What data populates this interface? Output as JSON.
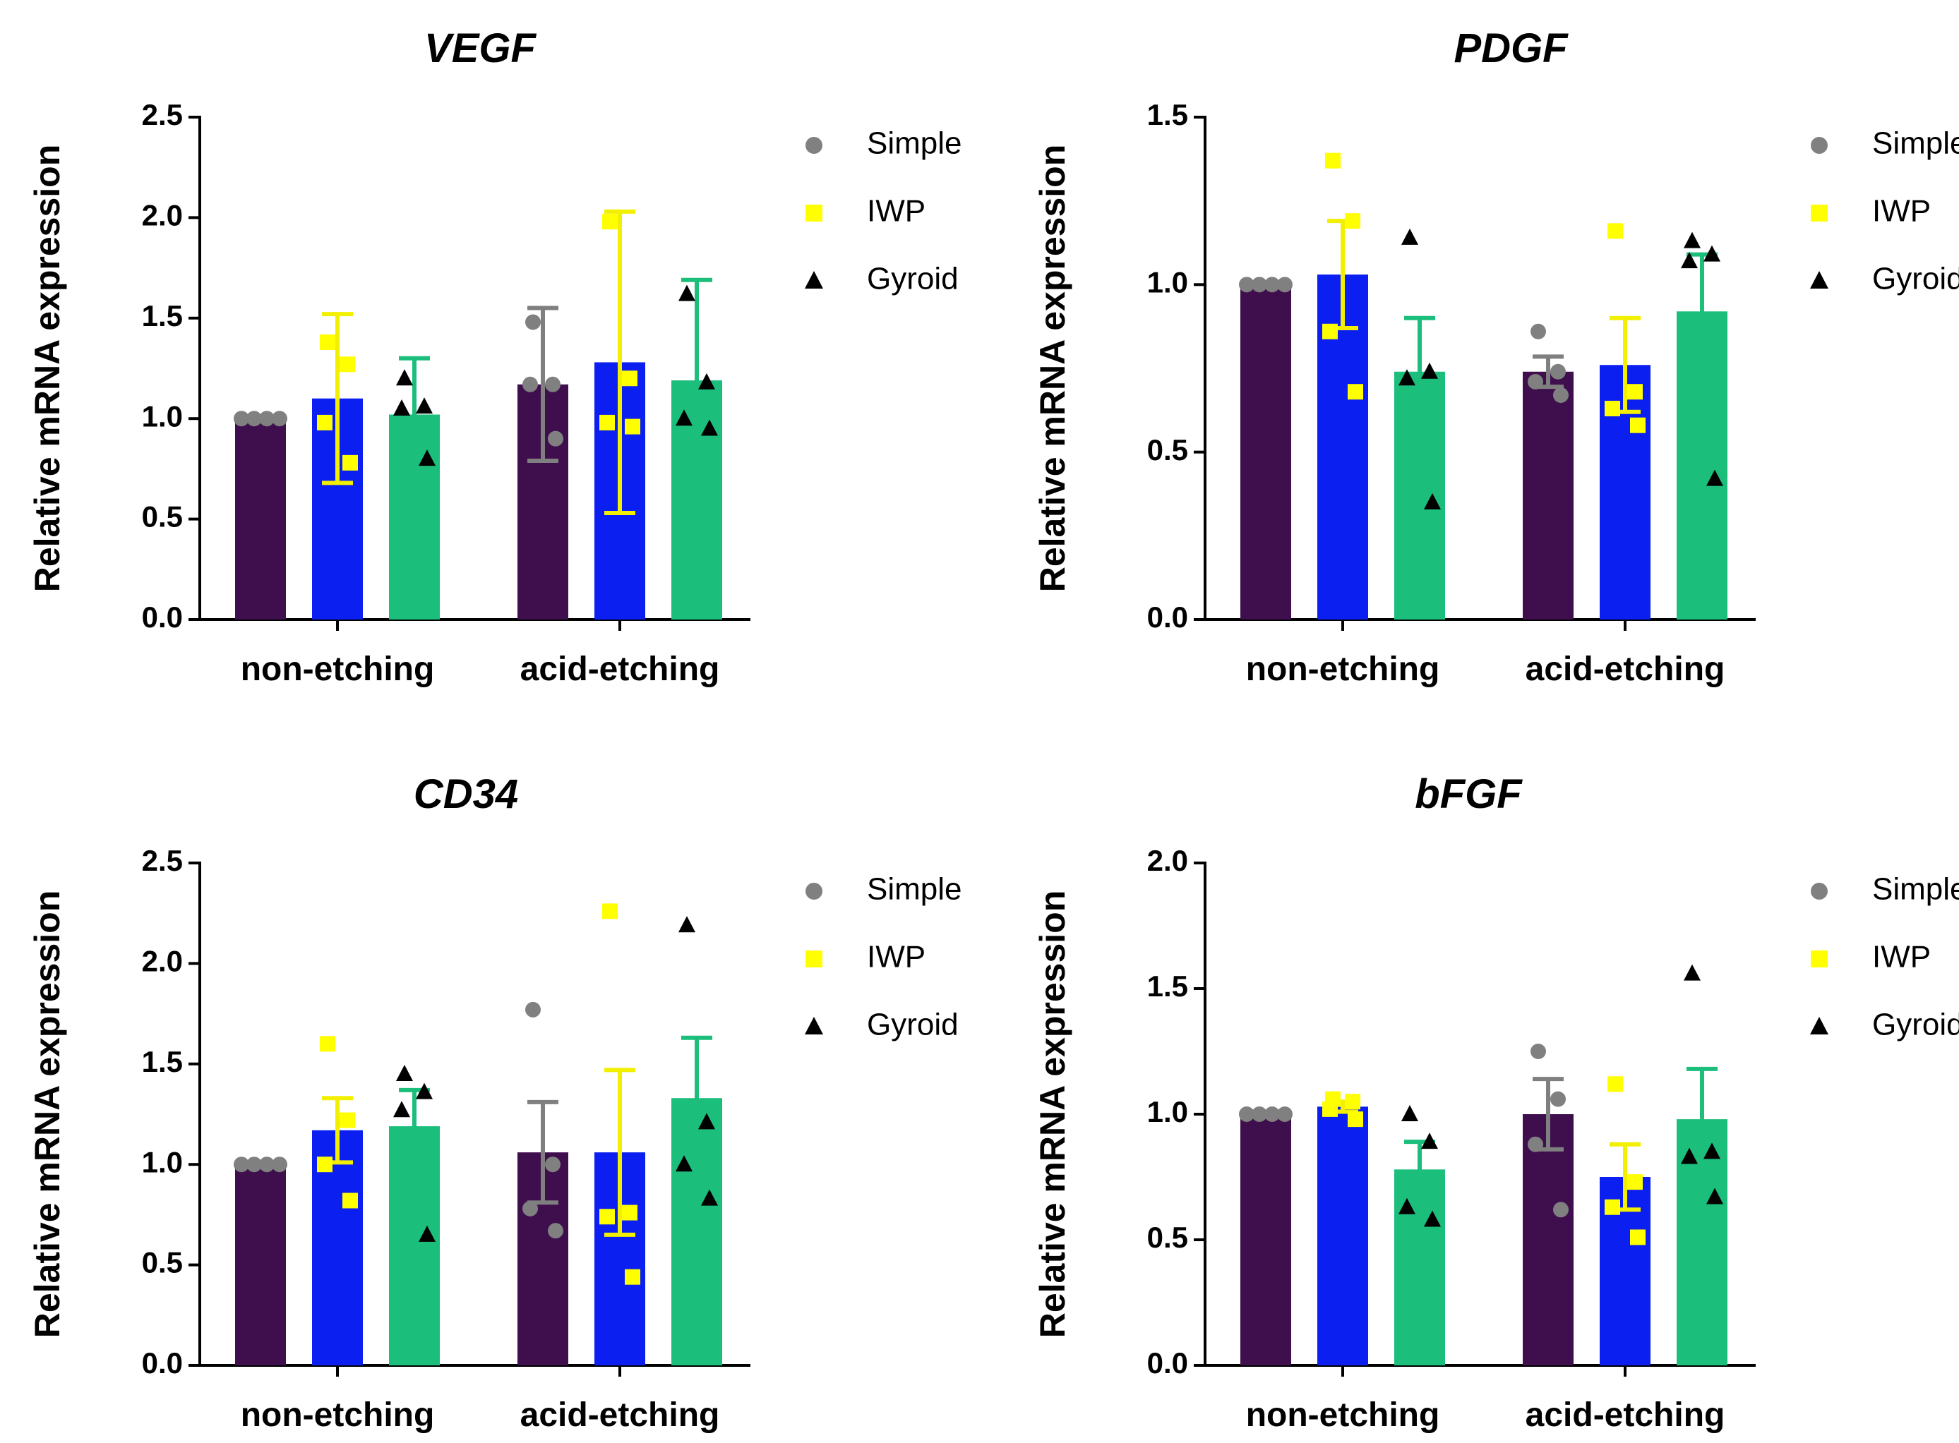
{
  "chart_data": [
    {
      "type": "bar",
      "title": "VEGF",
      "ylabel": "Relative mRNA expression",
      "xlabel": "",
      "categories": [
        "non-etching",
        "acid-etching"
      ],
      "ylim": [
        0,
        2.5
      ],
      "yticks": [
        "0.0",
        "0.5",
        "1.0",
        "1.5",
        "2.0",
        "2.5"
      ],
      "legend_position": "top-right",
      "series": [
        {
          "name": "Simple",
          "values": [
            1.0,
            1.17
          ],
          "error": [
            0.0,
            0.38
          ],
          "points": [
            [
              1.0,
              1.0,
              1.0,
              1.0
            ],
            [
              1.48,
              1.17,
              1.17,
              0.9
            ]
          ]
        },
        {
          "name": "IWP",
          "values": [
            1.1,
            1.28
          ],
          "error": [
            0.42,
            0.75
          ],
          "points": [
            [
              1.38,
              1.27,
              0.98,
              0.78
            ],
            [
              1.98,
              1.2,
              0.98,
              0.96
            ]
          ]
        },
        {
          "name": "Gyroid",
          "values": [
            1.02,
            1.19
          ],
          "error": [
            0.28,
            0.5
          ],
          "points": [
            [
              1.2,
              1.06,
              1.05,
              0.8
            ],
            [
              1.62,
              1.18,
              1.0,
              0.95
            ]
          ]
        }
      ]
    },
    {
      "type": "bar",
      "title": "PDGF",
      "ylabel": "Relative mRNA expression",
      "xlabel": "",
      "categories": [
        "non-etching",
        "acid-etching"
      ],
      "ylim": [
        0,
        1.5
      ],
      "yticks": [
        "0.0",
        "0.5",
        "1.0",
        "1.5"
      ],
      "legend_position": "top-right",
      "series": [
        {
          "name": "Simple",
          "values": [
            1.0,
            0.74
          ],
          "error": [
            0.0,
            0.045
          ],
          "points": [
            [
              1.0,
              1.0,
              1.0,
              1.0
            ],
            [
              0.86,
              0.74,
              0.71,
              0.67
            ]
          ]
        },
        {
          "name": "IWP",
          "values": [
            1.03,
            0.76
          ],
          "error": [
            0.16,
            0.14
          ],
          "points": [
            [
              1.37,
              1.19,
              0.86,
              0.68
            ],
            [
              1.16,
              0.68,
              0.63,
              0.58
            ]
          ]
        },
        {
          "name": "Gyroid",
          "values": [
            0.74,
            0.92
          ],
          "error": [
            0.16,
            0.17
          ],
          "points": [
            [
              1.14,
              0.74,
              0.72,
              0.35
            ],
            [
              1.13,
              1.09,
              1.07,
              0.42
            ]
          ]
        }
      ]
    },
    {
      "type": "bar",
      "title": "CD34",
      "ylabel": "Relative mRNA expression",
      "xlabel": "",
      "categories": [
        "non-etching",
        "acid-etching"
      ],
      "ylim": [
        0,
        2.5
      ],
      "yticks": [
        "0.0",
        "0.5",
        "1.0",
        "1.5",
        "2.0",
        "2.5"
      ],
      "legend_position": "top-right",
      "series": [
        {
          "name": "Simple",
          "values": [
            1.0,
            1.06
          ],
          "error": [
            0.0,
            0.25
          ],
          "points": [
            [
              1.0,
              1.0,
              1.0,
              1.0
            ],
            [
              1.77,
              1.0,
              0.78,
              0.67
            ]
          ]
        },
        {
          "name": "IWP",
          "values": [
            1.17,
            1.06
          ],
          "error": [
            0.16,
            0.41
          ],
          "points": [
            [
              1.6,
              1.22,
              1.0,
              0.82
            ],
            [
              2.26,
              0.76,
              0.74,
              0.44
            ]
          ]
        },
        {
          "name": "Gyroid",
          "values": [
            1.19,
            1.33
          ],
          "error": [
            0.18,
            0.3
          ],
          "points": [
            [
              1.45,
              1.36,
              1.27,
              0.65
            ],
            [
              2.19,
              1.21,
              1.0,
              0.83
            ]
          ]
        }
      ]
    },
    {
      "type": "bar",
      "title": "bFGF",
      "ylabel": "Relative mRNA expression",
      "xlabel": "",
      "categories": [
        "non-etching",
        "acid-etching"
      ],
      "ylim": [
        0,
        2.0
      ],
      "yticks": [
        "0.0",
        "0.5",
        "1.0",
        "1.5",
        "2.0"
      ],
      "legend_position": "top-right",
      "series": [
        {
          "name": "Simple",
          "values": [
            1.0,
            1.0
          ],
          "error": [
            0.0,
            0.14
          ],
          "points": [
            [
              1.0,
              1.0,
              1.0,
              1.0
            ],
            [
              1.25,
              1.06,
              0.88,
              0.62
            ]
          ]
        },
        {
          "name": "IWP",
          "values": [
            1.03,
            0.75
          ],
          "error": [
            0.02,
            0.13
          ],
          "points": [
            [
              1.06,
              1.05,
              1.02,
              0.98
            ],
            [
              1.12,
              0.73,
              0.63,
              0.51
            ]
          ]
        },
        {
          "name": "Gyroid",
          "values": [
            0.78,
            0.98
          ],
          "error": [
            0.11,
            0.2
          ],
          "points": [
            [
              1.0,
              0.89,
              0.63,
              0.58
            ],
            [
              1.56,
              0.85,
              0.83,
              0.67
            ]
          ]
        }
      ]
    }
  ],
  "colors": {
    "bars": [
      "#3f0f4d",
      "#0a1ff0",
      "#1cbe7c"
    ],
    "errorbars": [
      "#7f7f7f",
      "#f2ef00",
      "#1cbe7c"
    ],
    "points": [
      "#808080",
      "#ffff00",
      "#000000"
    ]
  },
  "markers": [
    "circle",
    "square",
    "triangle"
  ]
}
